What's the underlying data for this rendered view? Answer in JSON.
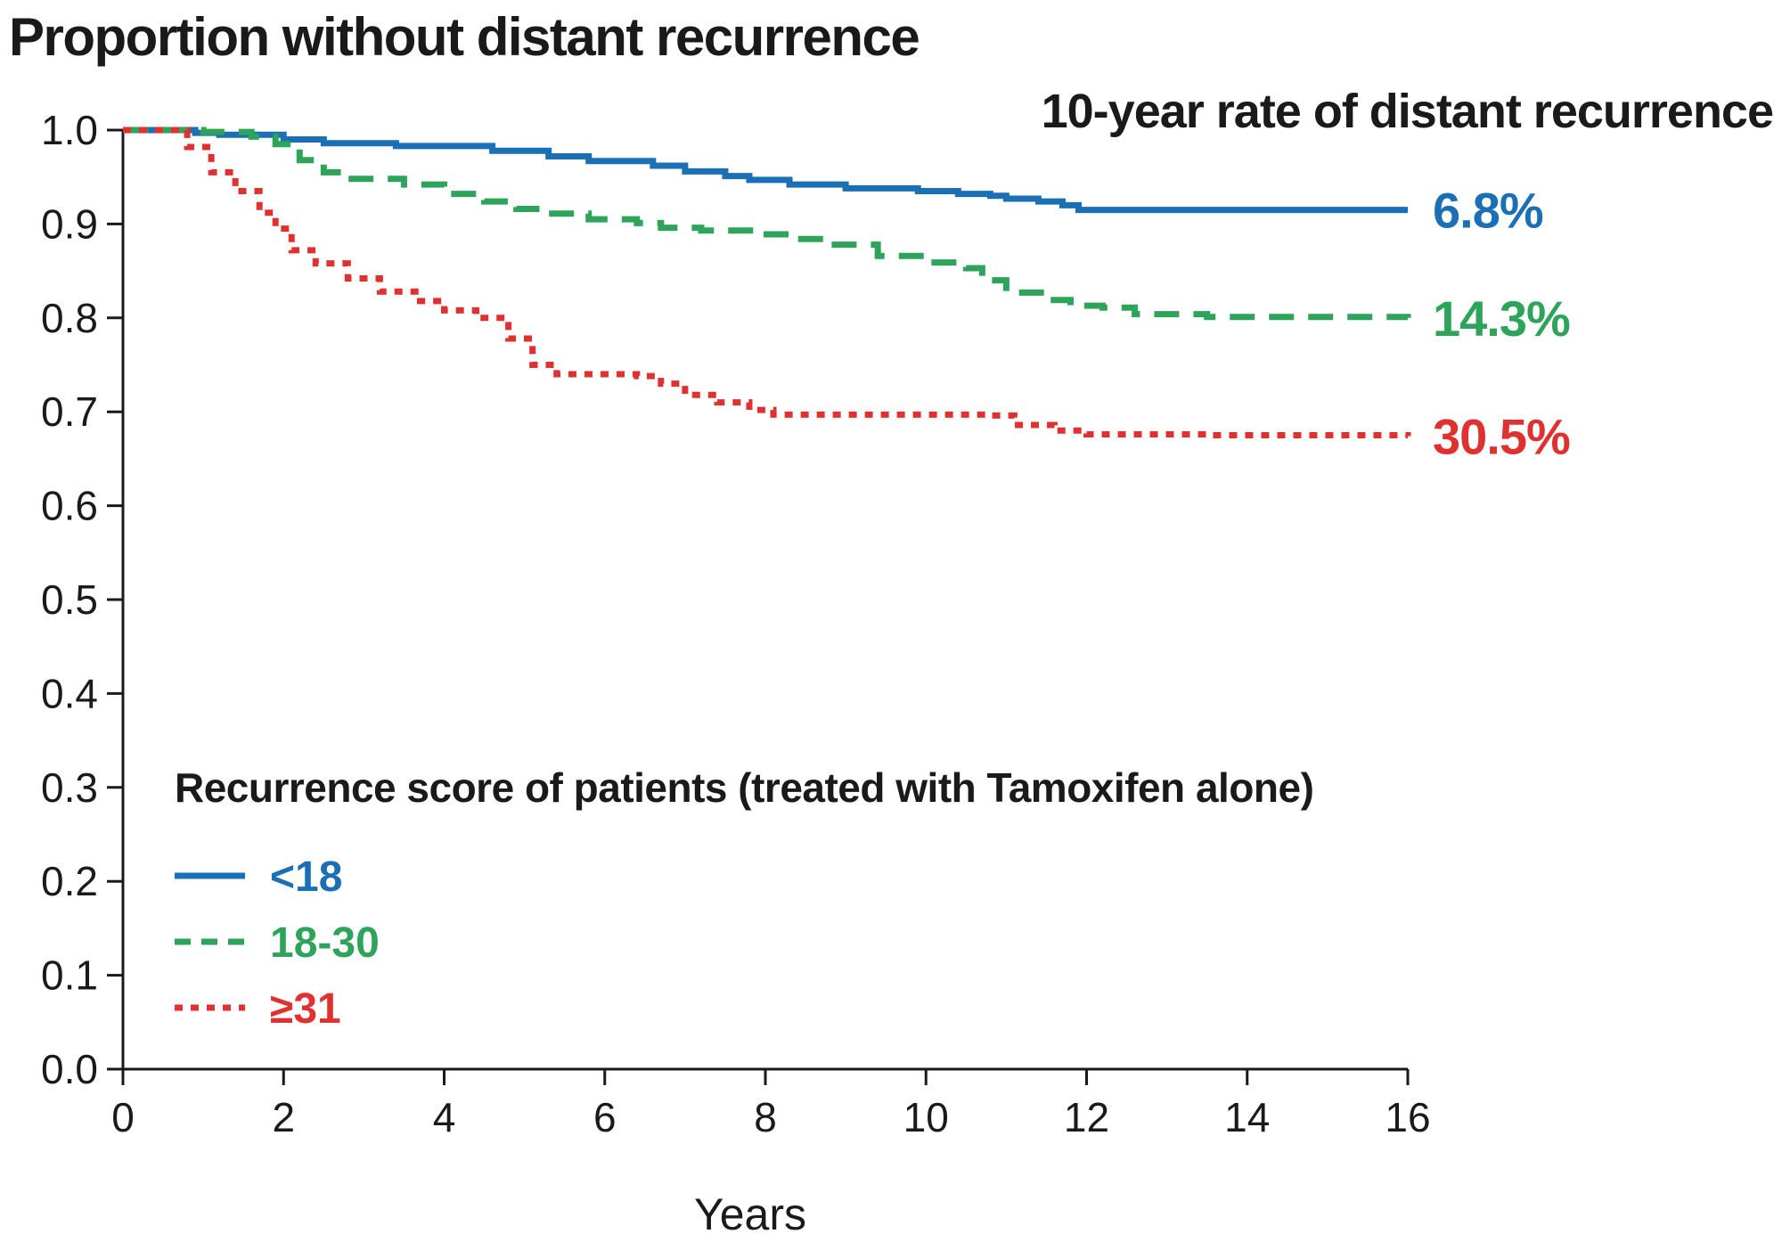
{
  "chart_data": {
    "type": "line",
    "title": "Proportion without distant recurrence",
    "subtitle": "10-year rate of distant recurrence",
    "xlabel": "Years",
    "ylabel": "",
    "xlim": [
      0,
      16
    ],
    "ylim": [
      0,
      1
    ],
    "x_ticks": [
      "0",
      "2",
      "4",
      "6",
      "8",
      "10",
      "12",
      "14",
      "16"
    ],
    "y_ticks": [
      "0.0",
      "0.1",
      "0.2",
      "0.3",
      "0.4",
      "0.5",
      "0.6",
      "0.7",
      "0.8",
      "0.9",
      "1.0"
    ],
    "grid": false,
    "legend_title": "Recurrence score of patients (treated with Tamoxifen alone)",
    "legend_position": "bottom-left",
    "series": [
      {
        "name": "<18",
        "color": "#1a6fb5",
        "style": "solid",
        "end_label": "6.8%",
        "x": [
          0,
          0.9,
          1.2,
          2.0,
          2.5,
          3.4,
          4.6,
          5.3,
          5.8,
          6.6,
          7.0,
          7.5,
          7.8,
          8.3,
          9.0,
          9.9,
          10.4,
          10.8,
          11.0,
          11.4,
          11.7,
          11.9,
          16.0
        ],
        "y": [
          1.0,
          0.997,
          0.995,
          0.99,
          0.986,
          0.983,
          0.978,
          0.972,
          0.967,
          0.962,
          0.956,
          0.951,
          0.947,
          0.942,
          0.938,
          0.935,
          0.932,
          0.93,
          0.927,
          0.924,
          0.92,
          0.915,
          0.915
        ]
      },
      {
        "name": "18-30",
        "color": "#2ea35a",
        "style": "dashed",
        "end_label": "14.3%",
        "x": [
          0,
          1.0,
          1.6,
          1.9,
          2.2,
          2.5,
          2.8,
          3.5,
          4.0,
          4.5,
          4.9,
          5.3,
          5.8,
          6.4,
          6.7,
          7.2,
          7.9,
          8.3,
          8.8,
          9.4,
          10.0,
          10.5,
          10.7,
          11.0,
          11.5,
          11.8,
          12.2,
          12.6,
          13.5,
          16.0
        ],
        "y": [
          1.0,
          0.998,
          0.993,
          0.985,
          0.968,
          0.955,
          0.948,
          0.942,
          0.932,
          0.924,
          0.916,
          0.911,
          0.905,
          0.901,
          0.896,
          0.893,
          0.889,
          0.884,
          0.878,
          0.866,
          0.859,
          0.853,
          0.84,
          0.827,
          0.819,
          0.813,
          0.811,
          0.804,
          0.801,
          0.8
        ]
      },
      {
        "name": "≥31",
        "color": "#e03131",
        "style": "dotted",
        "end_label": "30.5%",
        "x": [
          0,
          0.6,
          0.8,
          1.1,
          1.4,
          1.7,
          1.9,
          2.1,
          2.4,
          2.8,
          3.2,
          3.7,
          4.0,
          4.4,
          4.8,
          5.1,
          5.4,
          6.4,
          6.7,
          7.0,
          7.4,
          7.8,
          8.1,
          10.8,
          11.1,
          11.6,
          12.0,
          13.5,
          16.0
        ],
        "y": [
          1.0,
          1.0,
          0.982,
          0.955,
          0.935,
          0.912,
          0.895,
          0.872,
          0.858,
          0.842,
          0.828,
          0.818,
          0.808,
          0.8,
          0.778,
          0.75,
          0.74,
          0.738,
          0.73,
          0.718,
          0.71,
          0.702,
          0.697,
          0.696,
          0.686,
          0.68,
          0.676,
          0.675,
          0.674
        ]
      }
    ]
  }
}
